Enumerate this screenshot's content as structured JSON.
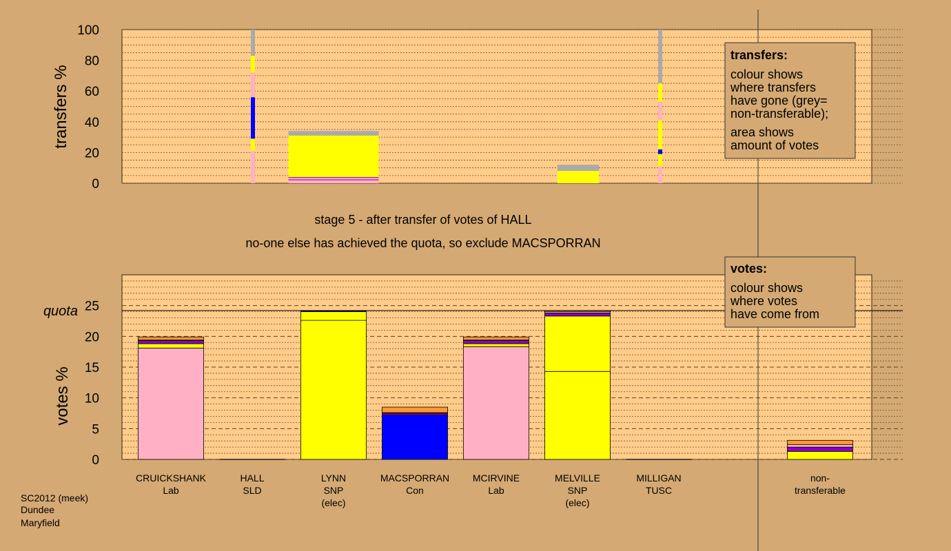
{
  "colors": {
    "background": "#d4a973",
    "plot_bg": "#ffcc8a",
    "Lab": "#ffb0c4",
    "SNP": "#ffff00",
    "Con": "#0000ff",
    "SLD": "#ff9933",
    "TUSC": "#8800cc",
    "non_transferable": "#aaaaaa"
  },
  "stage_text": {
    "line1": "stage 5 - after transfer of votes of HALL",
    "line2": "no-one else has achieved the quota, so exclude MACSPORRAN"
  },
  "legend_transfers": {
    "title": "transfers:",
    "line1": "colour shows",
    "line2": "where transfers",
    "line3": "have gone (grey=",
    "line4": "non-transferable);",
    "line5": "area shows",
    "line6": "amount of votes"
  },
  "legend_votes": {
    "title": "votes:",
    "line1": "colour shows",
    "line2": "where votes",
    "line3": "have come from"
  },
  "footer": {
    "line1": "SC2012 (meek)",
    "line2": "Dundee",
    "line3": "Maryfield"
  },
  "chart_data": [
    {
      "type": "bar",
      "panel": "transfers",
      "ylabel": "transfers %",
      "ylim": [
        0,
        100
      ],
      "yticks": [
        "0",
        "20",
        "40",
        "60",
        "80",
        "100"
      ],
      "grid": true,
      "bars": [
        {
          "candidate": "HALL",
          "width_votes": 0.3,
          "segments": [
            {
              "color": "Lab",
              "from": 0,
              "to": 21
            },
            {
              "color": "SNP",
              "from": 21,
              "to": 29
            },
            {
              "color": "Con",
              "from": 29,
              "to": 56
            },
            {
              "color": "Lab",
              "from": 56,
              "to": 72
            },
            {
              "color": "SNP",
              "from": 72,
              "to": 83
            },
            {
              "color": "non_transferable",
              "from": 83,
              "to": 100
            }
          ]
        },
        {
          "candidate": "LYNN",
          "width_votes": 19.5,
          "segments": [
            {
              "color": "Lab",
              "from": 0,
              "to": 2
            },
            {
              "color": "TUSC",
              "from": 2,
              "to": 2.5
            },
            {
              "color": "Lab",
              "from": 2.5,
              "to": 3.5
            },
            {
              "color": "TUSC",
              "from": 3.5,
              "to": 4
            },
            {
              "color": "SNP",
              "from": 4,
              "to": 31
            },
            {
              "color": "non_transferable",
              "from": 31,
              "to": 34
            }
          ]
        },
        {
          "candidate": "MELVILLE",
          "width_votes": 9,
          "segments": [
            {
              "color": "SNP",
              "from": 0,
              "to": 8
            },
            {
              "color": "non_transferable",
              "from": 8,
              "to": 12
            }
          ]
        },
        {
          "candidate": "MILLIGAN",
          "width_votes": 0.3,
          "segments": [
            {
              "color": "Lab",
              "from": 0,
              "to": 11
            },
            {
              "color": "SNP",
              "from": 11,
              "to": 19
            },
            {
              "color": "Con",
              "from": 19,
              "to": 22
            },
            {
              "color": "SNP",
              "from": 22,
              "to": 41
            },
            {
              "color": "Lab",
              "from": 41,
              "to": 53
            },
            {
              "color": "SNP",
              "from": 53,
              "to": 65
            },
            {
              "color": "non_transferable",
              "from": 65,
              "to": 100
            }
          ]
        }
      ]
    },
    {
      "type": "bar",
      "panel": "votes",
      "ylabel": "votes %",
      "ylim": [
        0,
        30
      ],
      "yticks": [
        "0",
        "5",
        "10",
        "15",
        "20",
        "25"
      ],
      "quota": 24.2,
      "quota_label": "quota",
      "grid": true,
      "categories": [
        {
          "name": "CRUICKSHANK",
          "party": "Lab",
          "note": ""
        },
        {
          "name": "HALL",
          "party": "SLD",
          "note": ""
        },
        {
          "name": "LYNN",
          "party": "SNP",
          "note": "(elec)"
        },
        {
          "name": "MACSPORRAN",
          "party": "Con",
          "note": ""
        },
        {
          "name": "MCIRVINE",
          "party": "Lab",
          "note": ""
        },
        {
          "name": "MELVILLE",
          "party": "SNP",
          "note": "(elec)"
        },
        {
          "name": "MILLIGAN",
          "party": "TUSC",
          "note": ""
        }
      ],
      "nontransferable": {
        "name": "non-",
        "party": "transferable",
        "segments": [
          {
            "color": "SNP",
            "value": 1.3
          },
          {
            "color": "TUSC",
            "value": 0.7
          },
          {
            "color": "Lab",
            "value": 0.4
          },
          {
            "color": "SLD",
            "value": 0.7
          }
        ]
      },
      "values": [
        [
          {
            "color": "Lab",
            "value": 18.1
          },
          {
            "color": "SNP",
            "value": 0.7
          },
          {
            "color": "TUSC",
            "value": 0.5
          },
          {
            "color": "Lab",
            "value": 0.1
          },
          {
            "color": "SLD",
            "value": 0.5
          }
        ],
        [],
        [
          {
            "color": "SNP",
            "value": 22.6
          },
          {
            "color": "SNP",
            "value": 1.4
          },
          {
            "color": "TUSC",
            "value": 0.1
          }
        ],
        [
          {
            "color": "Con",
            "value": 7.2
          },
          {
            "color": "TUSC",
            "value": 0.3
          },
          {
            "color": "Lab",
            "value": 0.1
          },
          {
            "color": "SLD",
            "value": 0.9
          }
        ],
        [
          {
            "color": "Lab",
            "value": 18.3
          },
          {
            "color": "SNP",
            "value": 0.5
          },
          {
            "color": "TUSC",
            "value": 0.5
          },
          {
            "color": "Lab",
            "value": 0.1
          },
          {
            "color": "SLD",
            "value": 0.5
          }
        ],
        [
          {
            "color": "SNP",
            "value": 14.3
          },
          {
            "color": "SNP",
            "value": 9
          },
          {
            "color": "TUSC",
            "value": 0.5
          },
          {
            "color": "Lab",
            "value": 0.2
          },
          {
            "color": "SLD",
            "value": 0.2
          }
        ],
        []
      ]
    }
  ]
}
